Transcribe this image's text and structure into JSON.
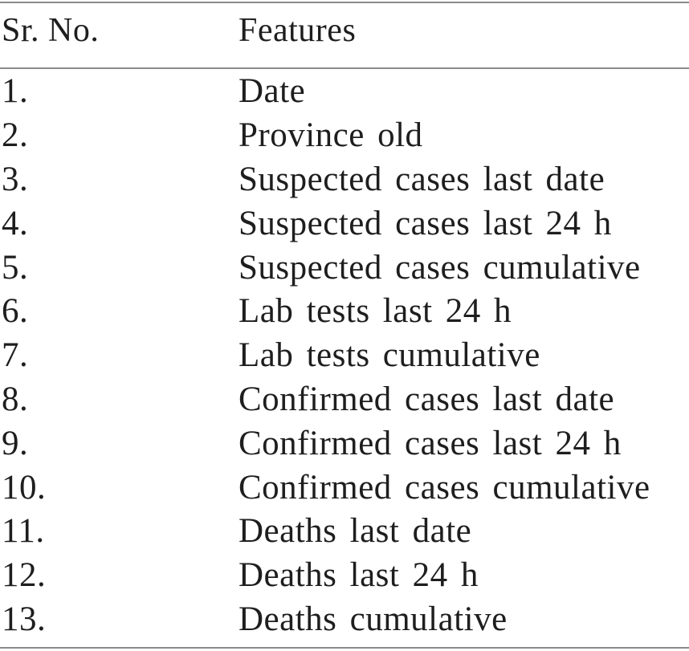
{
  "table": {
    "header": {
      "col1": "Sr. No.",
      "col2": "Features"
    },
    "rows": [
      {
        "no": "1.",
        "feature": "Date"
      },
      {
        "no": "2.",
        "feature": "Province old"
      },
      {
        "no": "3.",
        "feature": "Suspected cases last date"
      },
      {
        "no": "4.",
        "feature": "Suspected cases last 24 h"
      },
      {
        "no": "5.",
        "feature": "Suspected cases cumulative"
      },
      {
        "no": "6.",
        "feature": "Lab tests last 24 h"
      },
      {
        "no": "7.",
        "feature": "Lab tests cumulative"
      },
      {
        "no": "8.",
        "feature": "Confirmed cases last date"
      },
      {
        "no": "9.",
        "feature": "Confirmed cases last 24 h"
      },
      {
        "no": "10.",
        "feature": "Confirmed cases cumulative"
      },
      {
        "no": "11.",
        "feature": "Deaths last date"
      },
      {
        "no": "12.",
        "feature": "Deaths last 24 h"
      },
      {
        "no": "13.",
        "feature": "Deaths cumulative"
      }
    ]
  }
}
